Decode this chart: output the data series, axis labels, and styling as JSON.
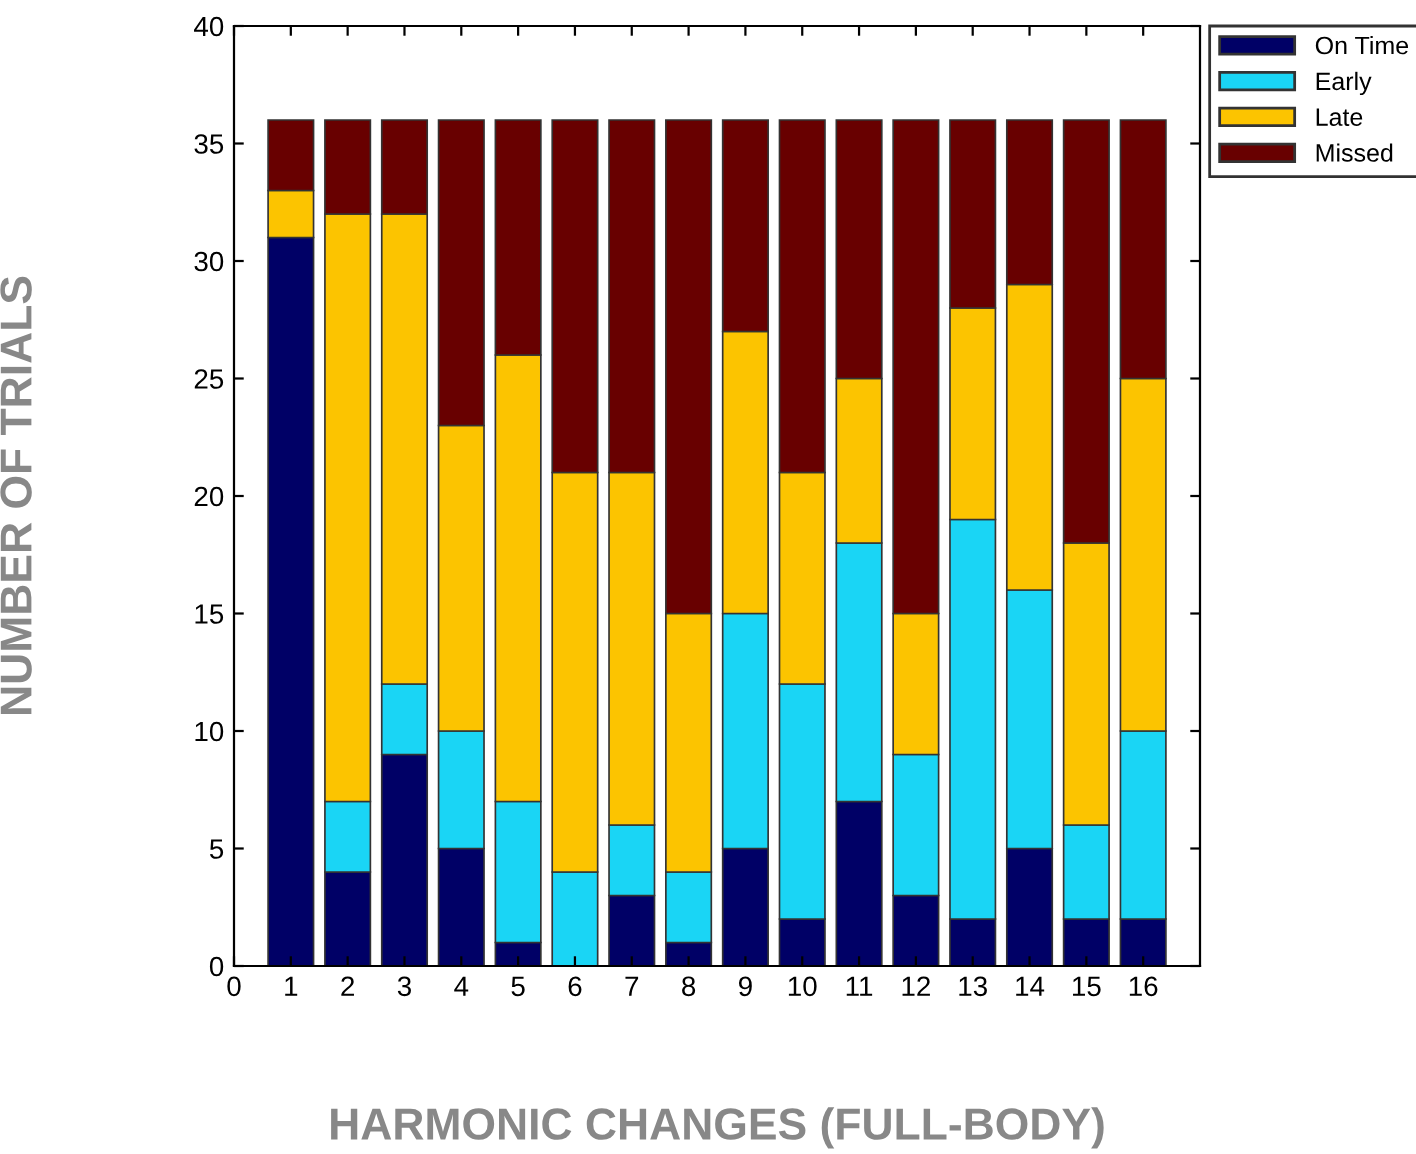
{
  "chart_data": {
    "type": "bar",
    "stacked": true,
    "xlabel": "HARMONIC CHANGES (FULL-BODY)",
    "ylabel": "NUMBER OF TRIALS",
    "x": [
      1,
      2,
      3,
      4,
      5,
      6,
      7,
      8,
      9,
      10,
      11,
      12,
      13,
      14,
      15,
      16
    ],
    "series": [
      {
        "name": "On Time",
        "color": "#000066",
        "values": [
          31,
          4,
          9,
          5,
          1,
          0,
          3,
          1,
          5,
          2,
          7,
          3,
          2,
          5,
          2,
          2
        ]
      },
      {
        "name": "Early",
        "color": "#1ad5f5",
        "values": [
          0,
          3,
          3,
          5,
          6,
          4,
          3,
          3,
          10,
          10,
          11,
          6,
          17,
          11,
          4,
          8
        ]
      },
      {
        "name": "Late",
        "color": "#fcc400",
        "values": [
          2,
          25,
          20,
          13,
          19,
          17,
          15,
          11,
          12,
          9,
          7,
          6,
          9,
          13,
          12,
          15
        ]
      },
      {
        "name": "Missed",
        "color": "#680000",
        "values": [
          3,
          4,
          4,
          13,
          10,
          15,
          15,
          21,
          9,
          15,
          11,
          21,
          8,
          7,
          18,
          11
        ]
      }
    ],
    "xlim": [
      0,
      17
    ],
    "xticks": [
      0,
      1,
      2,
      3,
      4,
      5,
      6,
      7,
      8,
      9,
      10,
      11,
      12,
      13,
      14,
      15,
      16
    ],
    "ylim": [
      0,
      40
    ],
    "yticks": [
      0,
      5,
      10,
      15,
      20,
      25,
      30,
      35,
      40
    ],
    "grid": false,
    "legend": "top right"
  }
}
